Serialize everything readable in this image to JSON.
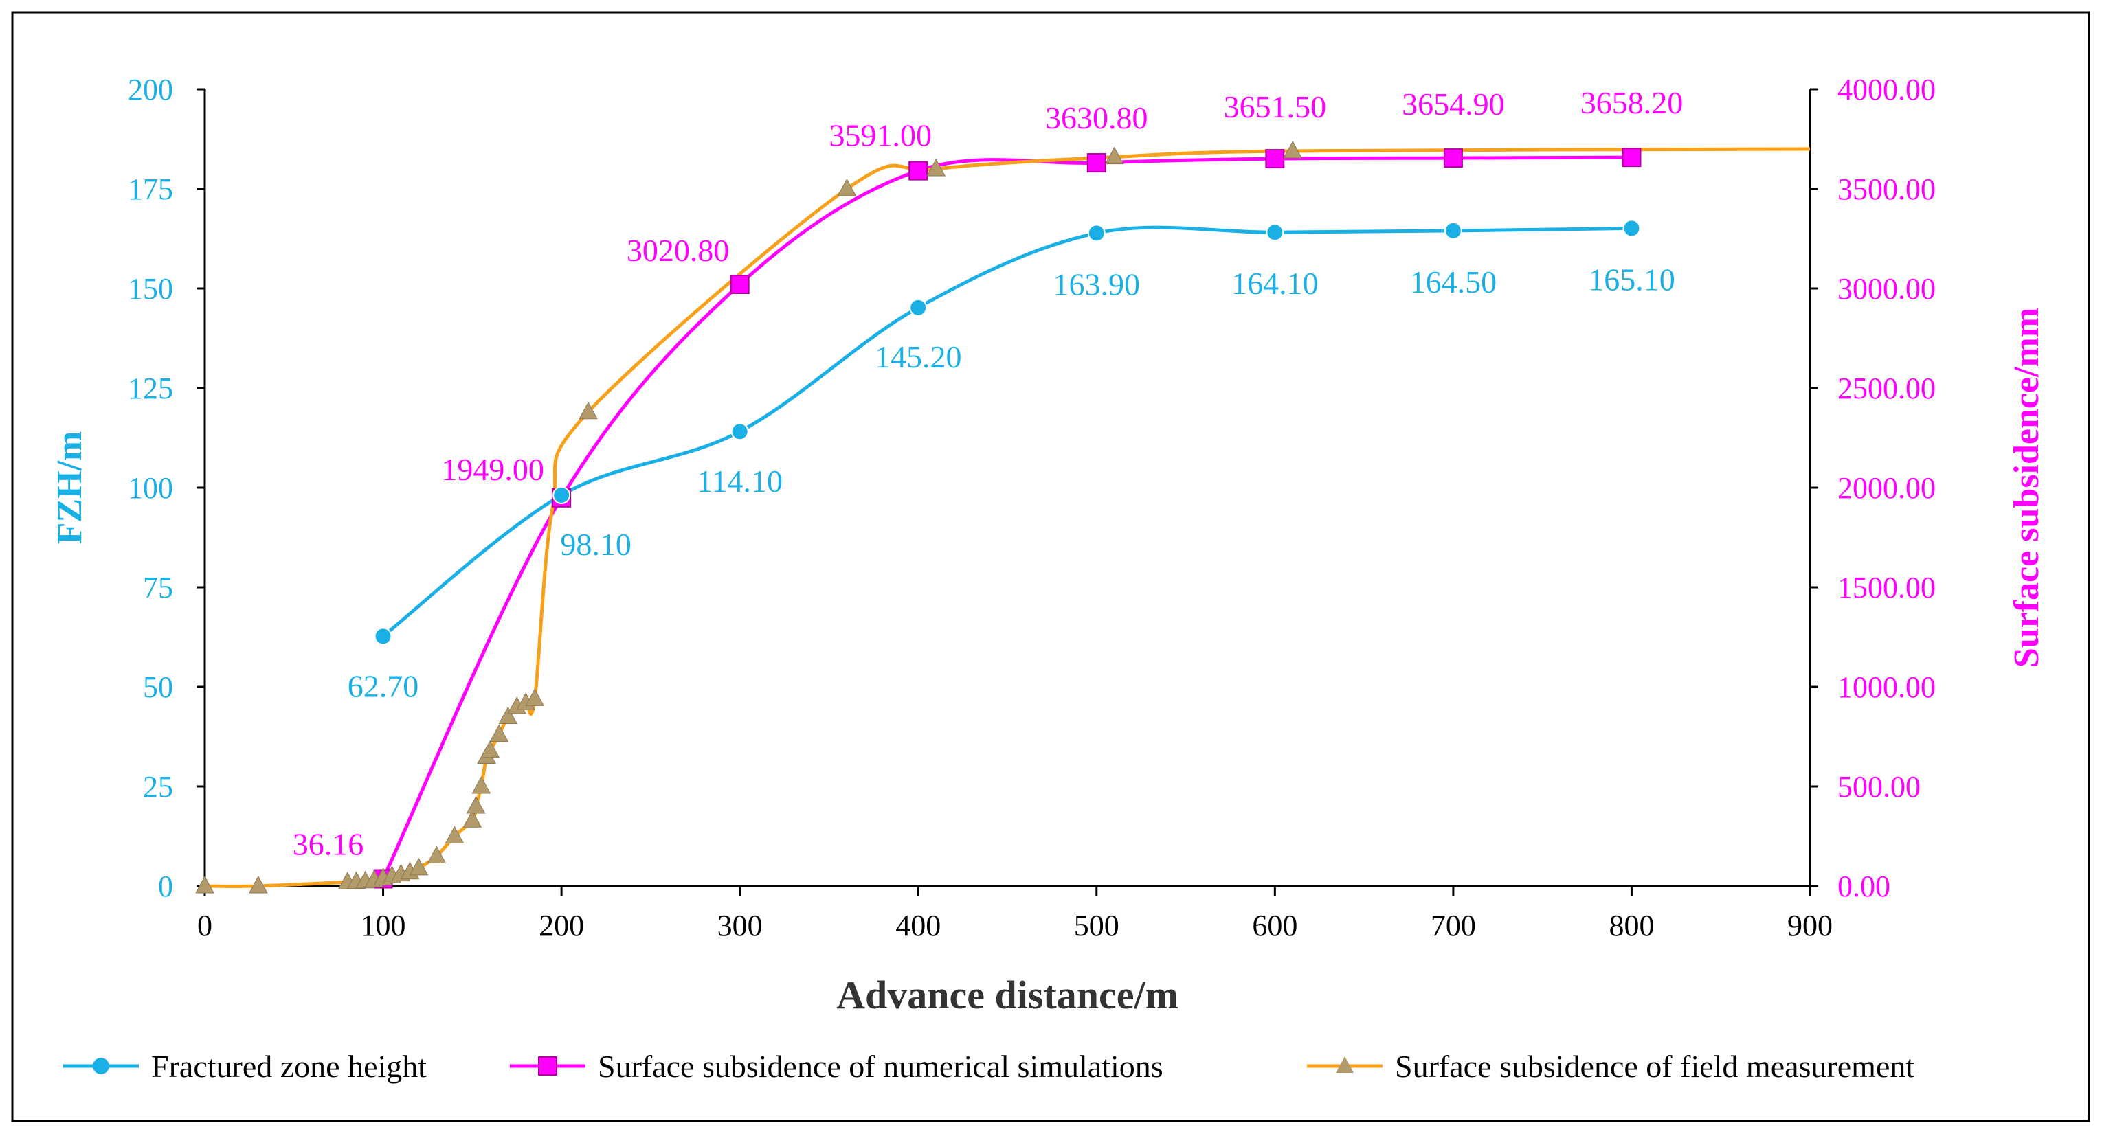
{
  "chart_data": {
    "type": "line",
    "title": "",
    "xlabel": "Advance distance/m",
    "ylabel_left": "FZH/m",
    "ylabel_right": "Surface subsidence/mm",
    "xlim": [
      0,
      900
    ],
    "ylim_left": [
      0,
      200
    ],
    "ylim_right": [
      0,
      4000
    ],
    "x_ticks": [
      "0",
      "100",
      "200",
      "300",
      "400",
      "500",
      "600",
      "700",
      "800",
      "900"
    ],
    "y_left_ticks": [
      "0",
      "25",
      "50",
      "75",
      "100",
      "125",
      "150",
      "175",
      "200"
    ],
    "y_right_ticks": [
      "0.00",
      "500.00",
      "1000.00",
      "1500.00",
      "2000.00",
      "2500.00",
      "3000.00",
      "3500.00",
      "4000.00"
    ],
    "grid": false,
    "legend_position": "bottom",
    "series": [
      {
        "name": "Fractured zone height",
        "axis": "left",
        "color": "#1AB0E6",
        "marker": "circle",
        "x": [
          100,
          200,
          300,
          400,
          500,
          600,
          700,
          800
        ],
        "y": [
          62.7,
          98.1,
          114.1,
          145.2,
          163.9,
          164.1,
          164.5,
          165.1
        ],
        "labels": [
          "62.70",
          "98.10",
          "114.10",
          "145.20",
          "163.90",
          "164.10",
          "164.50",
          "165.10"
        ]
      },
      {
        "name": "Surface subsidence of numerical simulations",
        "axis": "right",
        "color": "#FF00FF",
        "marker": "square",
        "x": [
          100,
          200,
          300,
          400,
          500,
          600,
          700,
          800
        ],
        "y": [
          36.16,
          1949.0,
          3020.8,
          3591.0,
          3630.8,
          3651.5,
          3654.9,
          3658.2
        ],
        "labels": [
          "36.16",
          "1949.00",
          "3020.80",
          "3591.00",
          "3630.80",
          "3651.50",
          "3654.90",
          "3658.20"
        ]
      },
      {
        "name": "Surface subsidence of field measurement",
        "axis": "right",
        "color": "#F7A11A",
        "marker": "triangle",
        "x": [
          0,
          30,
          80,
          85,
          90,
          95,
          100,
          105,
          110,
          115,
          120,
          130,
          140,
          150,
          152,
          155,
          158,
          160,
          165,
          170,
          175,
          180,
          185,
          195,
          215,
          360,
          410,
          510,
          610,
          900
        ],
        "y": [
          0,
          0,
          20,
          22,
          25,
          30,
          40,
          50,
          60,
          70,
          90,
          150,
          250,
          330,
          400,
          500,
          650,
          680,
          760,
          850,
          900,
          920,
          940,
          1900,
          2380,
          3500,
          3600,
          3660,
          3690,
          3700
        ],
        "marker_x": [
          0,
          30,
          80,
          85,
          90,
          95,
          100,
          105,
          110,
          115,
          120,
          130,
          140,
          150,
          152,
          155,
          158,
          160,
          165,
          170,
          175,
          180,
          185,
          215,
          360,
          410,
          510,
          610
        ]
      }
    ]
  }
}
